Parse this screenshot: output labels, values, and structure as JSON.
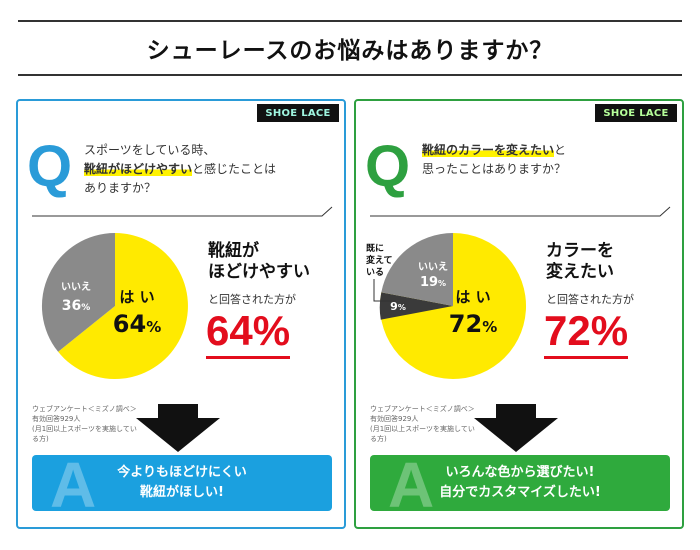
{
  "header": {
    "title": "シューレースのお悩みはありますか？"
  },
  "cards": [
    {
      "brand": "SHOE LACE",
      "q_letter": "Q",
      "question": {
        "line1": "スポーツをしている時、",
        "line2_highlight": "靴紐がほどけやすい",
        "line2_rest": "と感じたことは",
        "line3": "ありますか？"
      },
      "result": {
        "main_line1": "靴紐が",
        "main_line2": "ほどけやすい",
        "sub": "と回答された方が",
        "percent": "64%"
      },
      "pie": {
        "yes_label": "は い",
        "yes_value": "64",
        "yes_unit": "%",
        "no_label": "いいえ",
        "no_value": "36",
        "no_unit": "%"
      },
      "survey": [
        "ウェブアンケート＜ミズノ調べ＞",
        "有効回答929人",
        "(月1回以上スポーツを実施してい",
        "る方)"
      ],
      "answer": {
        "a_letter": "A",
        "line1": "今よりもほどけにくい",
        "line2": "靴紐がほしい!"
      }
    },
    {
      "brand": "SHOE LACE",
      "q_letter": "Q",
      "question": {
        "line1_highlight": "靴紐のカラーを変えたい",
        "line1_rest": "と",
        "line2": "思ったことはありますか？"
      },
      "result": {
        "main_line1": "カラーを",
        "main_line2": "変えたい",
        "sub": "と回答された方が",
        "percent": "72%"
      },
      "pie": {
        "yes_label": "は い",
        "yes_value": "72",
        "yes_unit": "%",
        "no_label": "いいえ",
        "no_value": "19",
        "no_unit": "%",
        "already_value": "9",
        "already_unit": "%",
        "already_label": [
          "既に",
          "変えて",
          "いる"
        ]
      },
      "survey": [
        "ウェブアンケート＜ミズノ調べ＞",
        "有効回答929人",
        "(月1回以上スポーツを実施してい",
        "る方)"
      ],
      "answer": {
        "a_letter": "A",
        "line1": "いろんな色から選びたい!",
        "line2": "自分でカスタマイズしたい!"
      }
    }
  ],
  "colors": {
    "left_accent": "#2a9bd8",
    "right_accent": "#2ea040",
    "pie_yes": "#ffea00",
    "pie_no": "#8a8a8a",
    "pie_already": "#3a3a3a",
    "percent_red": "#e30d1d"
  },
  "icons": [
    "down-arrow-icon",
    "divider-arrow-icon"
  ]
}
